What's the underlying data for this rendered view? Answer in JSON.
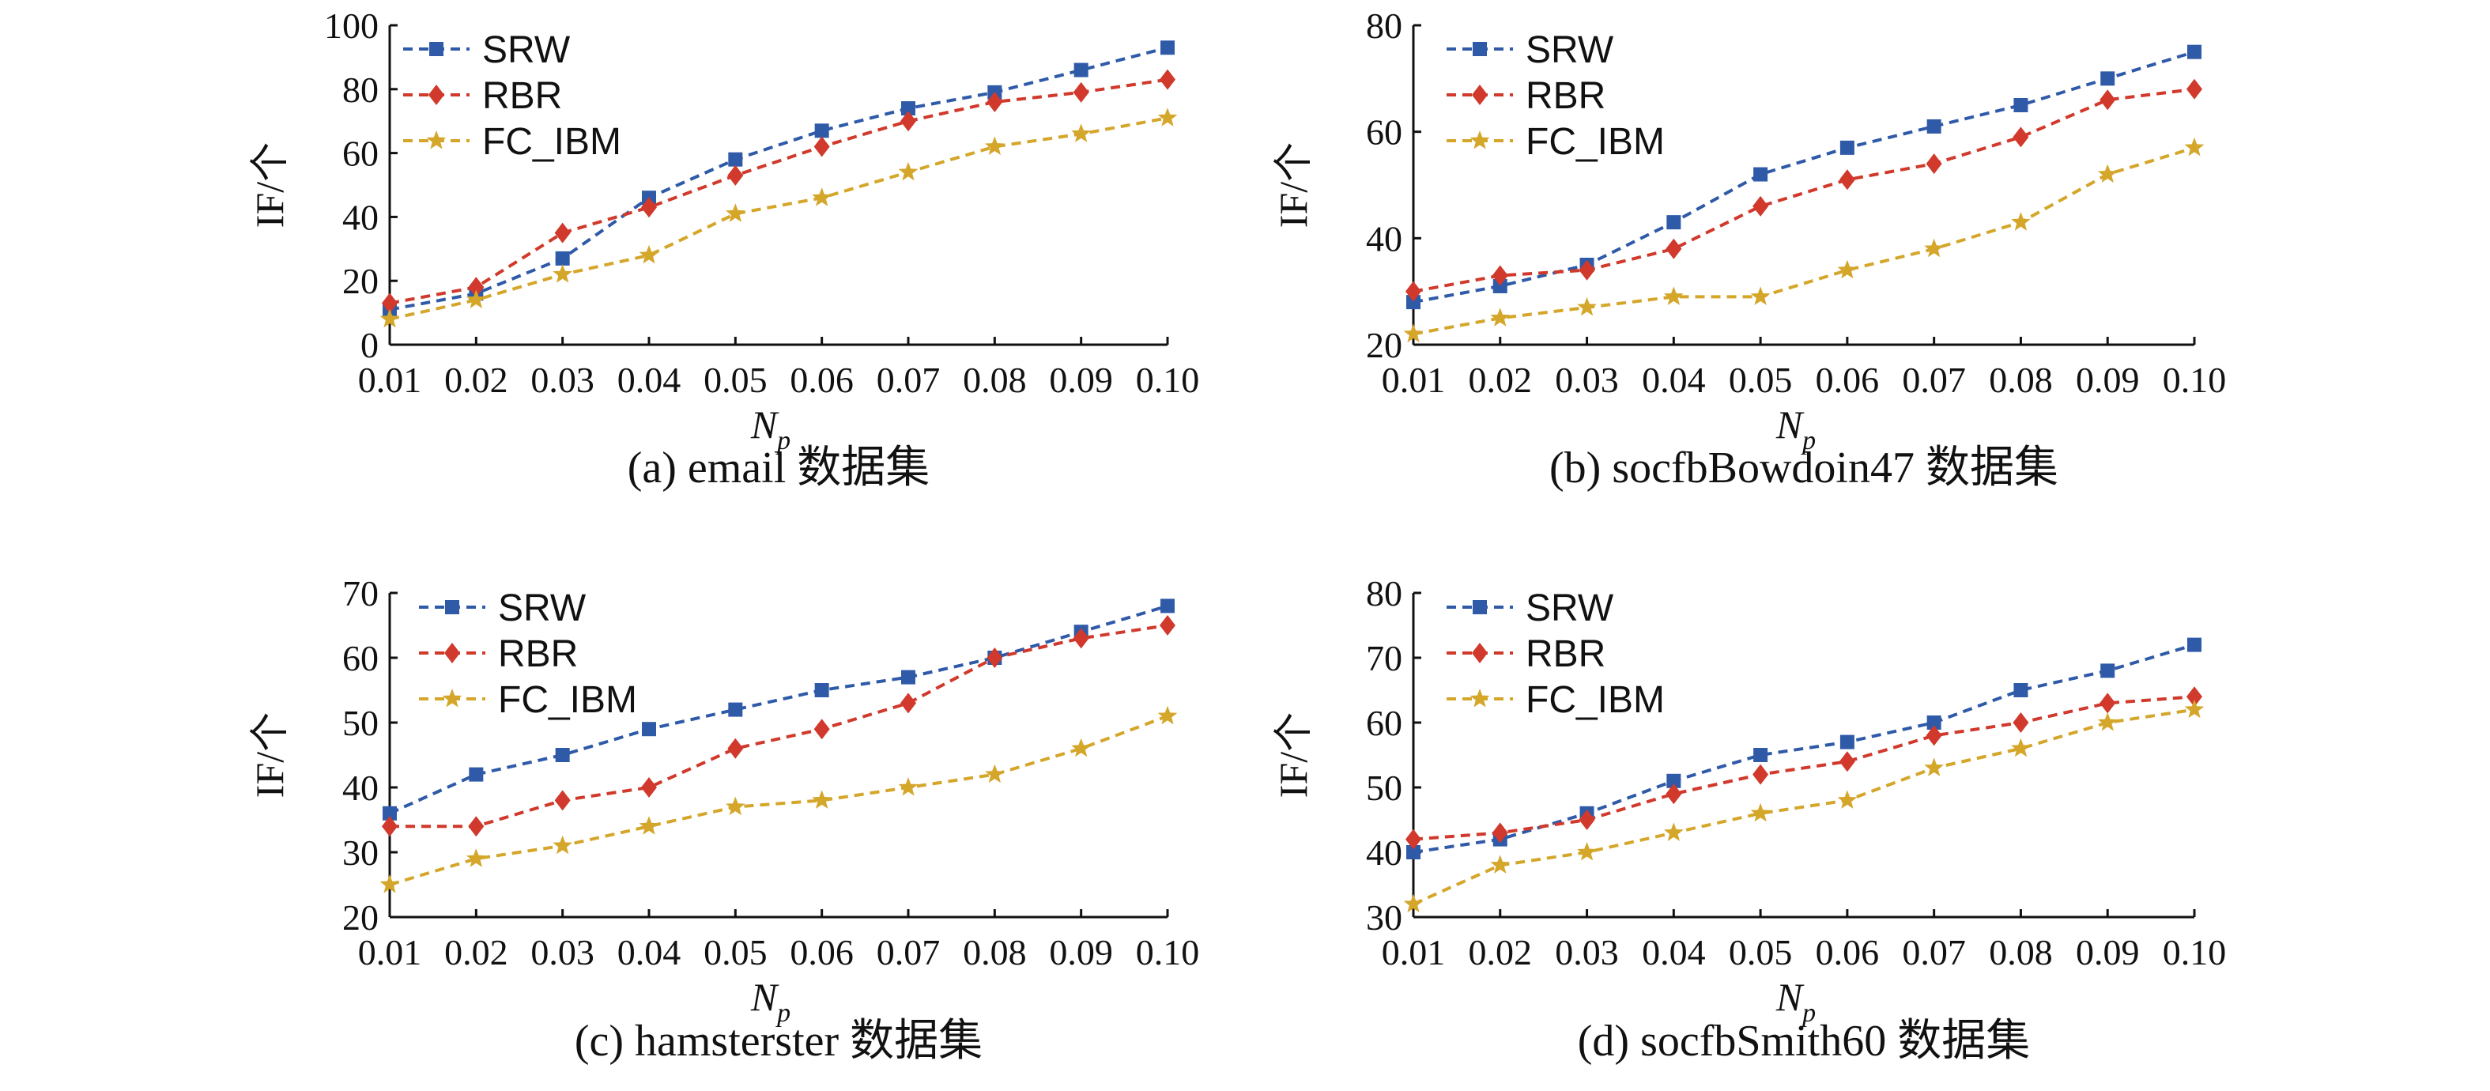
{
  "colors": {
    "SRW": "#2f5aa8",
    "RBR": "#d0392b",
    "FC_IBM": "#d4a62a",
    "axis": "#111111"
  },
  "chart_data": [
    {
      "type": "line",
      "caption": "(a) email 数据集",
      "ylabel": "IF/个",
      "xlabel": "N",
      "xlabel_sub": "p",
      "categories": [
        "0.01",
        "0.02",
        "0.03",
        "0.04",
        "0.05",
        "0.06",
        "0.07",
        "0.08",
        "0.09",
        "0.10"
      ],
      "ylim": [
        0,
        100
      ],
      "yticks": [
        0,
        20,
        40,
        60,
        80,
        100
      ],
      "legend": "top-left",
      "series": [
        {
          "name": "SRW",
          "marker": "square",
          "values": [
            11,
            16,
            27,
            46,
            58,
            67,
            74,
            79,
            86,
            93
          ]
        },
        {
          "name": "RBR",
          "marker": "diamond",
          "values": [
            13,
            18,
            35,
            43,
            53,
            62,
            70,
            76,
            79,
            83
          ]
        },
        {
          "name": "FC_IBM",
          "marker": "star",
          "values": [
            8,
            14,
            22,
            28,
            41,
            46,
            54,
            62,
            66,
            71
          ]
        }
      ]
    },
    {
      "type": "line",
      "caption": "(b) socfbBowdoin47 数据集",
      "ylabel": "IF/个",
      "xlabel": "N",
      "xlabel_sub": "p",
      "categories": [
        "0.01",
        "0.02",
        "0.03",
        "0.04",
        "0.05",
        "0.06",
        "0.07",
        "0.08",
        "0.09",
        "0.10"
      ],
      "ylim": [
        20,
        80
      ],
      "yticks": [
        20,
        40,
        60,
        80
      ],
      "legend": "top-left",
      "series": [
        {
          "name": "SRW",
          "marker": "square",
          "values": [
            28,
            31,
            35,
            43,
            52,
            57,
            61,
            65,
            70,
            75
          ]
        },
        {
          "name": "RBR",
          "marker": "diamond",
          "values": [
            30,
            33,
            34,
            38,
            46,
            51,
            54,
            59,
            66,
            68
          ]
        },
        {
          "name": "FC_IBM",
          "marker": "star",
          "values": [
            22,
            25,
            27,
            29,
            29,
            34,
            38,
            43,
            52,
            57
          ]
        }
      ]
    },
    {
      "type": "line",
      "caption": "(c) hamsterster 数据集",
      "ylabel": "IF/个",
      "xlabel": "N",
      "xlabel_sub": "p",
      "categories": [
        "0.01",
        "0.02",
        "0.03",
        "0.04",
        "0.05",
        "0.06",
        "0.07",
        "0.08",
        "0.09",
        "0.10"
      ],
      "ylim": [
        20,
        70
      ],
      "yticks": [
        20,
        30,
        40,
        50,
        60,
        70
      ],
      "legend": "top-left",
      "series": [
        {
          "name": "SRW",
          "marker": "square",
          "values": [
            36,
            42,
            45,
            49,
            52,
            55,
            57,
            60,
            64,
            68
          ]
        },
        {
          "name": "RBR",
          "marker": "diamond",
          "values": [
            34,
            34,
            38,
            40,
            46,
            49,
            53,
            60,
            63,
            65
          ]
        },
        {
          "name": "FC_IBM",
          "marker": "star",
          "values": [
            25,
            29,
            31,
            34,
            37,
            38,
            40,
            42,
            46,
            51
          ]
        }
      ]
    },
    {
      "type": "line",
      "caption": "(d) socfbSmith60 数据集",
      "ylabel": "IF/个",
      "xlabel": "N",
      "xlabel_sub": "p",
      "categories": [
        "0.01",
        "0.02",
        "0.03",
        "0.04",
        "0.05",
        "0.06",
        "0.07",
        "0.08",
        "0.09",
        "0.10"
      ],
      "ylim": [
        30,
        80
      ],
      "yticks": [
        30,
        40,
        50,
        60,
        70,
        80
      ],
      "legend": "top-left",
      "series": [
        {
          "name": "SRW",
          "marker": "square",
          "values": [
            40,
            42,
            46,
            51,
            55,
            57,
            60,
            65,
            68,
            72
          ]
        },
        {
          "name": "RBR",
          "marker": "diamond",
          "values": [
            42,
            43,
            45,
            49,
            52,
            54,
            58,
            60,
            63,
            64
          ]
        },
        {
          "name": "FC_IBM",
          "marker": "star",
          "values": [
            32,
            38,
            40,
            43,
            46,
            48,
            53,
            56,
            60,
            62
          ]
        }
      ]
    }
  ]
}
